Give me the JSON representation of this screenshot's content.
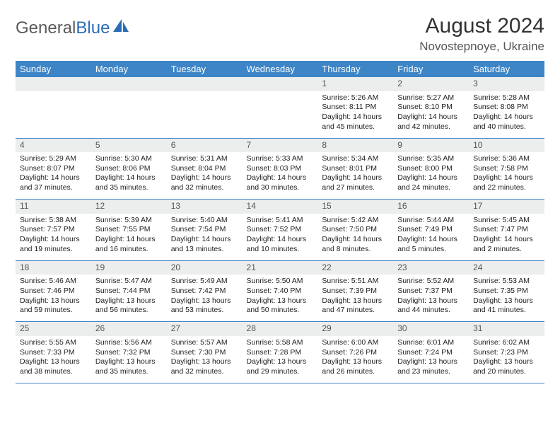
{
  "logo": {
    "text1": "General",
    "text2": "Blue"
  },
  "title": "August 2024",
  "location": "Novostepnoye, Ukraine",
  "colors": {
    "header_bg": "#3d85c6",
    "header_text": "#ffffff",
    "daynum_bg": "#eceded",
    "row_border": "#3d85c6",
    "logo_gray": "#5a5a5a",
    "logo_blue": "#2a6db5"
  },
  "weekdays": [
    "Sunday",
    "Monday",
    "Tuesday",
    "Wednesday",
    "Thursday",
    "Friday",
    "Saturday"
  ],
  "weeks": [
    [
      {
        "empty": true
      },
      {
        "empty": true
      },
      {
        "empty": true
      },
      {
        "empty": true
      },
      {
        "num": "1",
        "sunrise": "5:26 AM",
        "sunset": "8:11 PM",
        "daylight": "14 hours and 45 minutes."
      },
      {
        "num": "2",
        "sunrise": "5:27 AM",
        "sunset": "8:10 PM",
        "daylight": "14 hours and 42 minutes."
      },
      {
        "num": "3",
        "sunrise": "5:28 AM",
        "sunset": "8:08 PM",
        "daylight": "14 hours and 40 minutes."
      }
    ],
    [
      {
        "num": "4",
        "sunrise": "5:29 AM",
        "sunset": "8:07 PM",
        "daylight": "14 hours and 37 minutes."
      },
      {
        "num": "5",
        "sunrise": "5:30 AM",
        "sunset": "8:06 PM",
        "daylight": "14 hours and 35 minutes."
      },
      {
        "num": "6",
        "sunrise": "5:31 AM",
        "sunset": "8:04 PM",
        "daylight": "14 hours and 32 minutes."
      },
      {
        "num": "7",
        "sunrise": "5:33 AM",
        "sunset": "8:03 PM",
        "daylight": "14 hours and 30 minutes."
      },
      {
        "num": "8",
        "sunrise": "5:34 AM",
        "sunset": "8:01 PM",
        "daylight": "14 hours and 27 minutes."
      },
      {
        "num": "9",
        "sunrise": "5:35 AM",
        "sunset": "8:00 PM",
        "daylight": "14 hours and 24 minutes."
      },
      {
        "num": "10",
        "sunrise": "5:36 AM",
        "sunset": "7:58 PM",
        "daylight": "14 hours and 22 minutes."
      }
    ],
    [
      {
        "num": "11",
        "sunrise": "5:38 AM",
        "sunset": "7:57 PM",
        "daylight": "14 hours and 19 minutes."
      },
      {
        "num": "12",
        "sunrise": "5:39 AM",
        "sunset": "7:55 PM",
        "daylight": "14 hours and 16 minutes."
      },
      {
        "num": "13",
        "sunrise": "5:40 AM",
        "sunset": "7:54 PM",
        "daylight": "14 hours and 13 minutes."
      },
      {
        "num": "14",
        "sunrise": "5:41 AM",
        "sunset": "7:52 PM",
        "daylight": "14 hours and 10 minutes."
      },
      {
        "num": "15",
        "sunrise": "5:42 AM",
        "sunset": "7:50 PM",
        "daylight": "14 hours and 8 minutes."
      },
      {
        "num": "16",
        "sunrise": "5:44 AM",
        "sunset": "7:49 PM",
        "daylight": "14 hours and 5 minutes."
      },
      {
        "num": "17",
        "sunrise": "5:45 AM",
        "sunset": "7:47 PM",
        "daylight": "14 hours and 2 minutes."
      }
    ],
    [
      {
        "num": "18",
        "sunrise": "5:46 AM",
        "sunset": "7:46 PM",
        "daylight": "13 hours and 59 minutes."
      },
      {
        "num": "19",
        "sunrise": "5:47 AM",
        "sunset": "7:44 PM",
        "daylight": "13 hours and 56 minutes."
      },
      {
        "num": "20",
        "sunrise": "5:49 AM",
        "sunset": "7:42 PM",
        "daylight": "13 hours and 53 minutes."
      },
      {
        "num": "21",
        "sunrise": "5:50 AM",
        "sunset": "7:40 PM",
        "daylight": "13 hours and 50 minutes."
      },
      {
        "num": "22",
        "sunrise": "5:51 AM",
        "sunset": "7:39 PM",
        "daylight": "13 hours and 47 minutes."
      },
      {
        "num": "23",
        "sunrise": "5:52 AM",
        "sunset": "7:37 PM",
        "daylight": "13 hours and 44 minutes."
      },
      {
        "num": "24",
        "sunrise": "5:53 AM",
        "sunset": "7:35 PM",
        "daylight": "13 hours and 41 minutes."
      }
    ],
    [
      {
        "num": "25",
        "sunrise": "5:55 AM",
        "sunset": "7:33 PM",
        "daylight": "13 hours and 38 minutes."
      },
      {
        "num": "26",
        "sunrise": "5:56 AM",
        "sunset": "7:32 PM",
        "daylight": "13 hours and 35 minutes."
      },
      {
        "num": "27",
        "sunrise": "5:57 AM",
        "sunset": "7:30 PM",
        "daylight": "13 hours and 32 minutes."
      },
      {
        "num": "28",
        "sunrise": "5:58 AM",
        "sunset": "7:28 PM",
        "daylight": "13 hours and 29 minutes."
      },
      {
        "num": "29",
        "sunrise": "6:00 AM",
        "sunset": "7:26 PM",
        "daylight": "13 hours and 26 minutes."
      },
      {
        "num": "30",
        "sunrise": "6:01 AM",
        "sunset": "7:24 PM",
        "daylight": "13 hours and 23 minutes."
      },
      {
        "num": "31",
        "sunrise": "6:02 AM",
        "sunset": "7:23 PM",
        "daylight": "13 hours and 20 minutes."
      }
    ]
  ],
  "labels": {
    "sunrise": "Sunrise:",
    "sunset": "Sunset:",
    "daylight": "Daylight:"
  }
}
